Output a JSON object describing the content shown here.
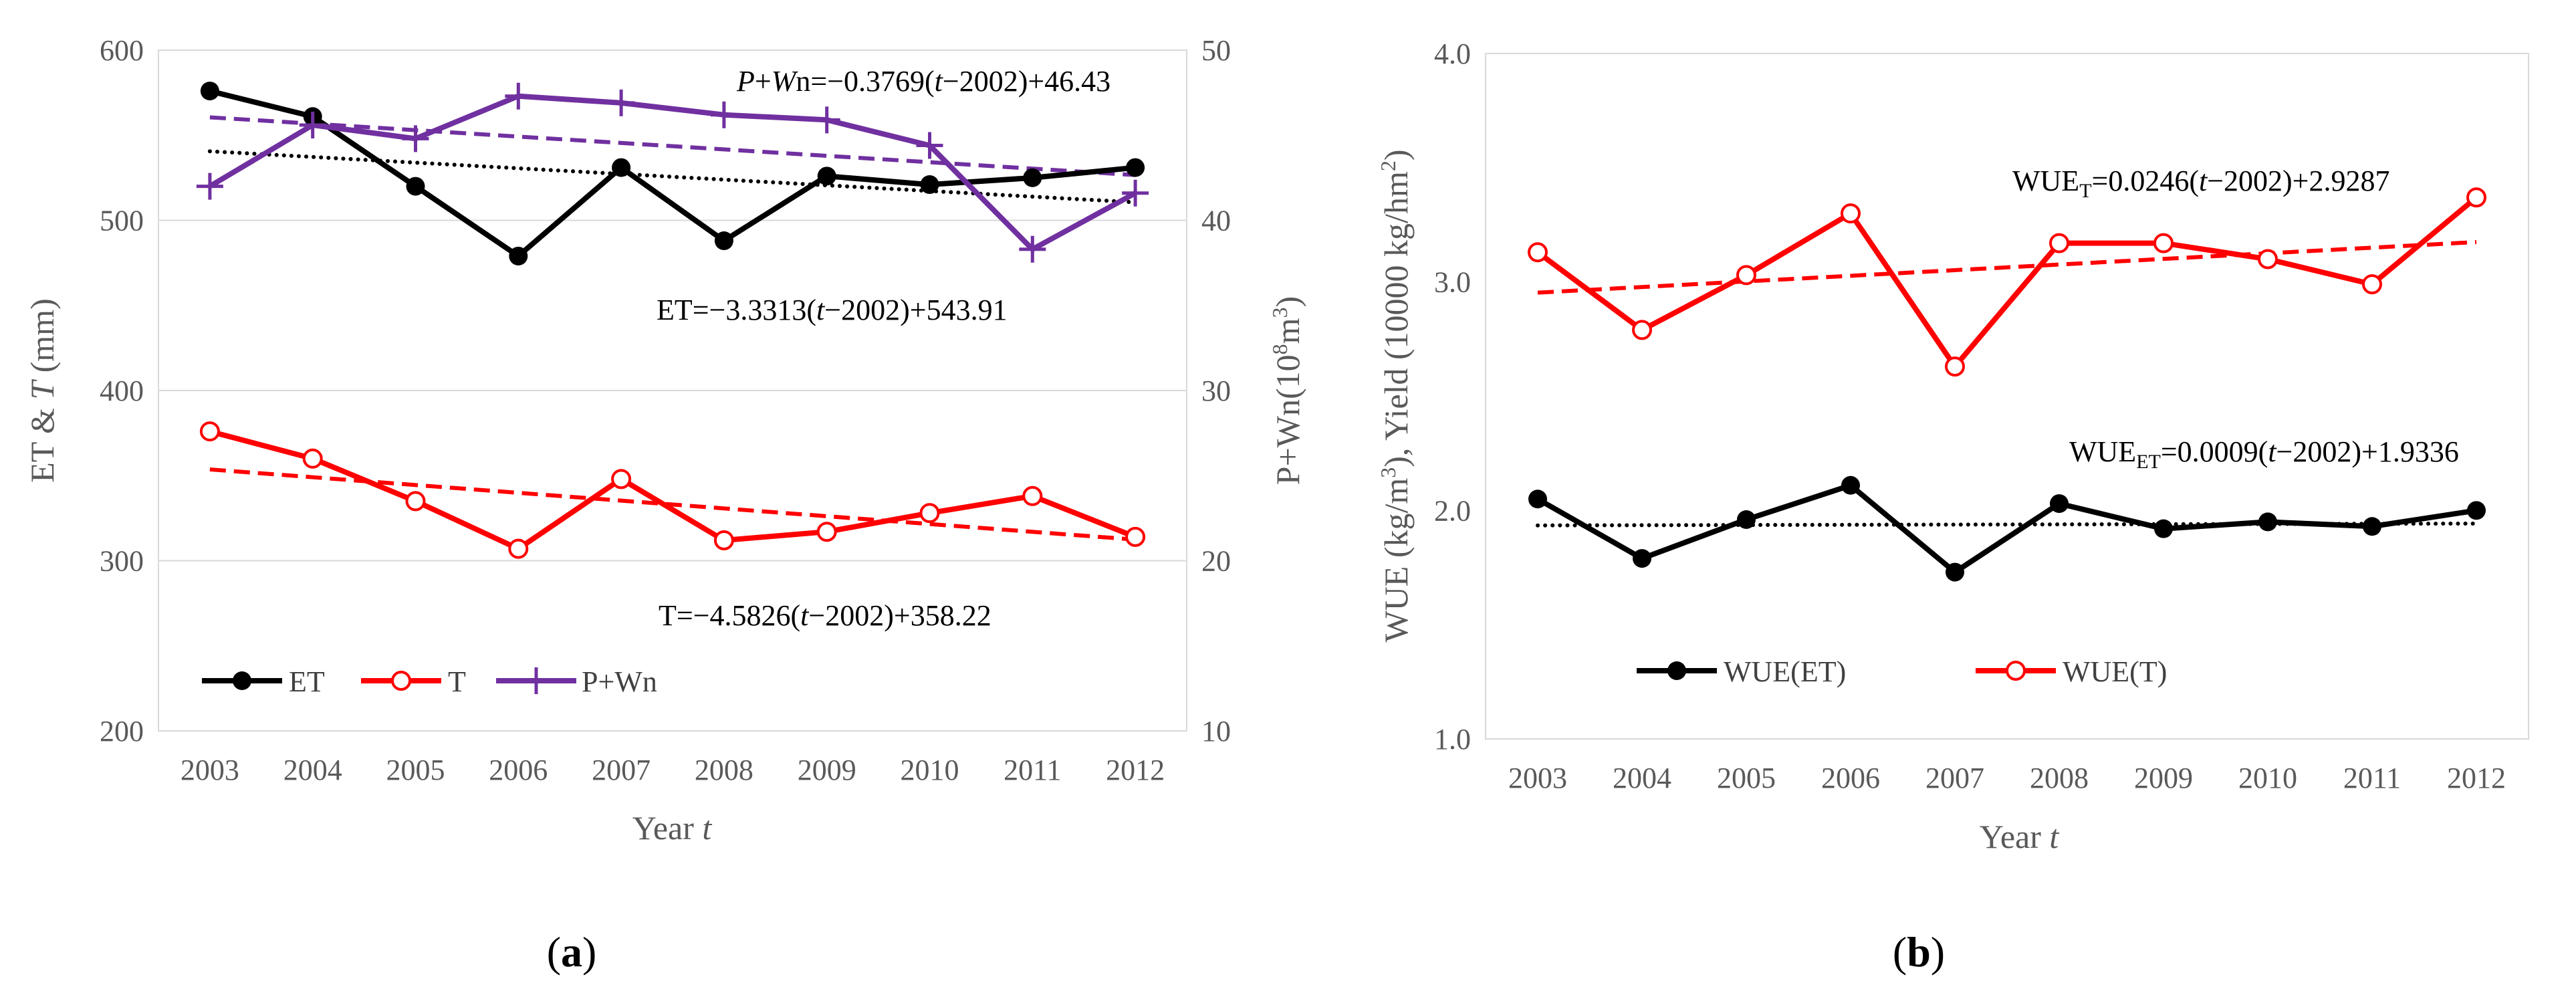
{
  "chart_data": [
    {
      "type": "line",
      "panel_label": {
        "open": "(",
        "letter": "a",
        "close": ")"
      },
      "categories": [
        "2003",
        "2004",
        "2005",
        "2006",
        "2007",
        "2008",
        "2009",
        "2010",
        "2011",
        "2012"
      ],
      "xlabel": {
        "main": "Year ",
        "var": "t"
      },
      "ylabel": {
        "prefix": "ET & ",
        "var": "T",
        "unit": " (mm)"
      },
      "ylabel_right": {
        "main": "P+Wn(10",
        "sup": "8",
        "unit": "m",
        "sup2": "3",
        "close": ")"
      },
      "ylim": [
        200,
        600
      ],
      "ylim_right": [
        10,
        50
      ],
      "yticks": [
        "200",
        "300",
        "400",
        "500",
        "600"
      ],
      "yticks_right": [
        "10",
        "20",
        "30",
        "40",
        "50"
      ],
      "grid": true,
      "legend_position": "bottom-left",
      "series": [
        {
          "name": "ET",
          "axis": "left",
          "color": "#000000",
          "marker": "filled-circle",
          "values": [
            576,
            561,
            520,
            479,
            531,
            488,
            526,
            521,
            525,
            531
          ]
        },
        {
          "name": "T",
          "axis": "left",
          "color": "#ff0000",
          "marker": "open-circle",
          "values": [
            376,
            360,
            335,
            307,
            348,
            312,
            317,
            328,
            338,
            314
          ]
        },
        {
          "name": "P+Wn",
          "axis": "right",
          "color": "#7030a0",
          "marker": "plus",
          "values": [
            42.0,
            45.6,
            44.8,
            47.3,
            46.9,
            46.2,
            45.9,
            44.4,
            38.3,
            41.6
          ]
        }
      ],
      "trendlines": [
        {
          "series": "ET",
          "axis": "left",
          "style": "dotted",
          "color": "#000000",
          "slope": -3.3313,
          "intercept": 543.91
        },
        {
          "series": "T",
          "axis": "left",
          "style": "dashed",
          "color": "#ff0000",
          "slope": -4.5826,
          "intercept": 358.22
        },
        {
          "series": "P+Wn",
          "axis": "right",
          "style": "dashed",
          "color": "#7030a0",
          "slope": -0.3769,
          "intercept": 46.43
        }
      ],
      "annotations": {
        "pwn": {
          "p": "P",
          "plus": "+",
          "w": "W",
          "rest": "n=−0.3769(",
          "t": "t",
          "tail": "−2002)+46.43"
        },
        "et": {
          "head": "ET=−3.3313(",
          "t": "t",
          "tail": "−2002)+543.91"
        },
        "t": {
          "head": "T=−4.5826(",
          "t": "t",
          "tail": "−2002)+358.22"
        }
      }
    },
    {
      "type": "line",
      "panel_label": {
        "open": "(",
        "letter": "b",
        "close": ")"
      },
      "categories": [
        "2003",
        "2004",
        "2005",
        "2006",
        "2007",
        "2008",
        "2009",
        "2010",
        "2011",
        "2012"
      ],
      "xlabel": {
        "main": "Year ",
        "var": "t"
      },
      "ylabel": {
        "a": "WUE (kg/m",
        "a_sup": "3",
        "b": "), Yield (10000 kg/hm",
        "b_sup": "2",
        "c": ")"
      },
      "ylim": [
        1.0,
        4.0
      ],
      "yticks": [
        "1.0",
        "2.0",
        "3.0",
        "4.0"
      ],
      "grid": false,
      "legend_position": "bottom-left",
      "series": [
        {
          "name": "WUE(ET)",
          "color": "#000000",
          "marker": "filled-circle",
          "values": [
            2.05,
            1.79,
            1.96,
            2.11,
            1.73,
            2.03,
            1.92,
            1.95,
            1.93,
            2.0
          ]
        },
        {
          "name": "WUE(T)",
          "color": "#ff0000",
          "marker": "open-circle",
          "values": [
            3.13,
            2.79,
            3.03,
            3.3,
            2.63,
            3.17,
            3.17,
            3.1,
            2.99,
            3.37
          ]
        }
      ],
      "trendlines": [
        {
          "series": "WUE(T)",
          "style": "dashed",
          "color": "#ff0000",
          "slope": 0.0246,
          "intercept": 2.9287
        },
        {
          "series": "WUE(ET)",
          "style": "dotted",
          "color": "#000000",
          "slope": 0.0009,
          "intercept": 1.9336
        }
      ],
      "annotations": {
        "wue_t": {
          "head": "WUE",
          "sub": "T",
          "mid": "=0.0246(",
          "t": "t",
          "tail": "−2002)+2.9287"
        },
        "wue_et": {
          "head": "WUE",
          "sub": "ET",
          "mid": "=0.0009(",
          "t": "t",
          "tail": "−2002)+1.9336"
        }
      }
    }
  ]
}
